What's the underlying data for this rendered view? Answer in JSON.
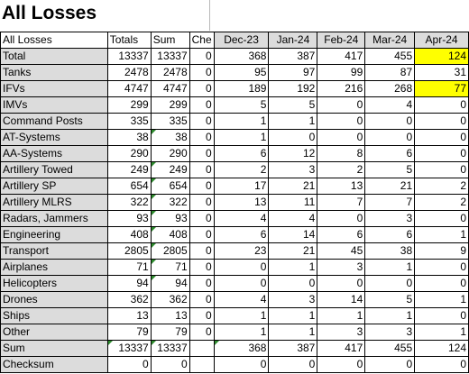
{
  "title": "All Losses",
  "header": {
    "name": "All Losses",
    "totals": "Totals",
    "sum": "Sum",
    "check": "Che",
    "months": [
      "Dec-23",
      "Jan-24",
      "Feb-24",
      "Mar-24",
      "Apr-24"
    ]
  },
  "rows": [
    {
      "label": "Total",
      "totals": "13337",
      "sum": "13337",
      "check": "0",
      "m": [
        "368",
        "387",
        "417",
        "455",
        "124"
      ]
    },
    {
      "label": "Tanks",
      "totals": "2478",
      "sum": "2478",
      "check": "0",
      "m": [
        "95",
        "97",
        "99",
        "87",
        "31"
      ]
    },
    {
      "label": "IFVs",
      "totals": "4747",
      "sum": "4747",
      "check": "0",
      "m": [
        "189",
        "192",
        "216",
        "268",
        "77"
      ]
    },
    {
      "label": "IMVs",
      "totals": "299",
      "sum": "299",
      "check": "0",
      "m": [
        "5",
        "5",
        "0",
        "4",
        "0"
      ]
    },
    {
      "label": "Command Posts",
      "totals": "335",
      "sum": "335",
      "check": "0",
      "m": [
        "1",
        "1",
        "0",
        "0",
        "0"
      ]
    },
    {
      "label": "AT-Systems",
      "totals": "38",
      "sum": "38",
      "check": "0",
      "m": [
        "1",
        "0",
        "0",
        "0",
        "0"
      ]
    },
    {
      "label": "AA-Systems",
      "totals": "290",
      "sum": "290",
      "check": "0",
      "m": [
        "6",
        "12",
        "8",
        "6",
        "0"
      ]
    },
    {
      "label": "Artillery Towed",
      "totals": "249",
      "sum": "249",
      "check": "0",
      "m": [
        "2",
        "3",
        "2",
        "5",
        "0"
      ]
    },
    {
      "label": "Artillery SP",
      "totals": "654",
      "sum": "654",
      "check": "0",
      "m": [
        "17",
        "21",
        "13",
        "21",
        "2"
      ]
    },
    {
      "label": "Artillery MLRS",
      "totals": "322",
      "sum": "322",
      "check": "0",
      "m": [
        "13",
        "11",
        "7",
        "7",
        "2"
      ]
    },
    {
      "label": "Radars, Jammers",
      "totals": "93",
      "sum": "93",
      "check": "0",
      "m": [
        "4",
        "4",
        "0",
        "3",
        "0"
      ]
    },
    {
      "label": "Engineering",
      "totals": "408",
      "sum": "408",
      "check": "0",
      "m": [
        "6",
        "14",
        "6",
        "6",
        "1"
      ]
    },
    {
      "label": "Transport",
      "totals": "2805",
      "sum": "2805",
      "check": "0",
      "m": [
        "23",
        "21",
        "45",
        "38",
        "9"
      ]
    },
    {
      "label": "Airplanes",
      "totals": "71",
      "sum": "71",
      "check": "0",
      "m": [
        "0",
        "1",
        "3",
        "1",
        "0"
      ]
    },
    {
      "label": "Helicopters",
      "totals": "94",
      "sum": "94",
      "check": "0",
      "m": [
        "0",
        "0",
        "0",
        "0",
        "0"
      ]
    },
    {
      "label": "Drones",
      "totals": "362",
      "sum": "362",
      "check": "0",
      "m": [
        "4",
        "3",
        "14",
        "5",
        "1"
      ]
    },
    {
      "label": "Ships",
      "totals": "13",
      "sum": "13",
      "check": "0",
      "m": [
        "1",
        "1",
        "1",
        "1",
        "0"
      ]
    },
    {
      "label": "Other",
      "totals": "79",
      "sum": "79",
      "check": "0",
      "m": [
        "1",
        "1",
        "3",
        "3",
        "1"
      ]
    }
  ],
  "footer": {
    "sum": {
      "label": "Sum",
      "totals": "13337",
      "sum": "13337",
      "check": "",
      "m": [
        "368",
        "387",
        "417",
        "455",
        "124"
      ]
    },
    "checksum": {
      "label": "Checksum",
      "totals": "0",
      "sum": "0",
      "check": "",
      "m": [
        "0",
        "0",
        "0",
        "0",
        "0"
      ]
    }
  },
  "highlighted_cells": [
    {
      "row": "Total",
      "month": "Apr-24"
    },
    {
      "row": "IFVs",
      "month": "Apr-24"
    }
  ],
  "colors": {
    "highlight": "#ffff00",
    "label_fill": "#dcdcdc",
    "error_indicator": "#2e8b2e"
  }
}
